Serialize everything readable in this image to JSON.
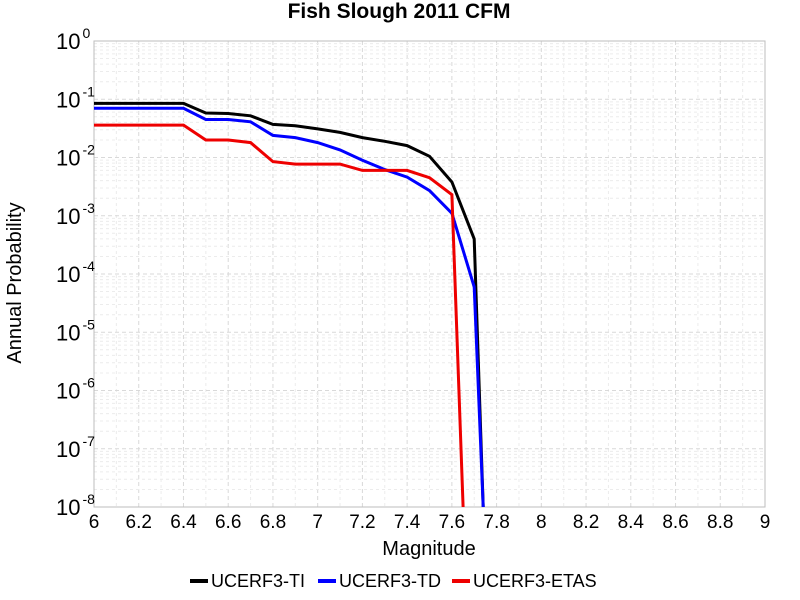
{
  "chart_data": {
    "type": "line",
    "title": "Fish Slough 2011 CFM",
    "xlabel": "Magnitude",
    "ylabel": "Annual Probability",
    "xlim": [
      6,
      9
    ],
    "ylim": [
      1e-08,
      1
    ],
    "yscale": "log",
    "grid": true,
    "legend_position": "bottom",
    "x_ticks": [
      "6",
      "6.2",
      "6.4",
      "6.6",
      "6.8",
      "7",
      "7.2",
      "7.4",
      "7.6",
      "7.8",
      "8",
      "8.2",
      "8.4",
      "8.6",
      "8.8",
      "9"
    ],
    "y_ticks": [
      {
        "base": "10",
        "exp": "0"
      },
      {
        "base": "10",
        "exp": "-1"
      },
      {
        "base": "10",
        "exp": "-2"
      },
      {
        "base": "10",
        "exp": "-3"
      },
      {
        "base": "10",
        "exp": "-4"
      },
      {
        "base": "10",
        "exp": "-5"
      },
      {
        "base": "10",
        "exp": "-6"
      },
      {
        "base": "10",
        "exp": "-7"
      },
      {
        "base": "10",
        "exp": "-8"
      }
    ],
    "series": [
      {
        "name": "UCERF3-TI",
        "color": "#000000",
        "x": [
          6.0,
          6.1,
          6.2,
          6.3,
          6.4,
          6.5,
          6.6,
          6.7,
          6.8,
          6.9,
          7.0,
          7.1,
          7.2,
          7.3,
          7.4,
          7.5,
          7.6,
          7.7,
          7.74
        ],
        "y": [
          0.085,
          0.085,
          0.085,
          0.085,
          0.085,
          0.058,
          0.057,
          0.052,
          0.037,
          0.035,
          0.031,
          0.027,
          0.022,
          0.019,
          0.016,
          0.0105,
          0.0038,
          0.0004,
          1e-08
        ]
      },
      {
        "name": "UCERF3-TD",
        "color": "#0000ff",
        "x": [
          6.0,
          6.1,
          6.2,
          6.3,
          6.4,
          6.5,
          6.6,
          6.7,
          6.8,
          6.9,
          7.0,
          7.1,
          7.2,
          7.3,
          7.4,
          7.5,
          7.6,
          7.7,
          7.74
        ],
        "y": [
          0.07,
          0.07,
          0.07,
          0.07,
          0.07,
          0.045,
          0.045,
          0.041,
          0.024,
          0.022,
          0.018,
          0.0135,
          0.009,
          0.0062,
          0.0046,
          0.0027,
          0.0011,
          6e-05,
          1e-08
        ]
      },
      {
        "name": "UCERF3-ETAS",
        "color": "#ee0000",
        "x": [
          6.0,
          6.1,
          6.2,
          6.3,
          6.4,
          6.5,
          6.6,
          6.7,
          6.8,
          6.9,
          7.0,
          7.1,
          7.2,
          7.3,
          7.4,
          7.5,
          7.6,
          7.65
        ],
        "y": [
          0.036,
          0.036,
          0.036,
          0.036,
          0.036,
          0.02,
          0.02,
          0.018,
          0.0085,
          0.0077,
          0.0077,
          0.0077,
          0.006,
          0.006,
          0.006,
          0.0045,
          0.0023,
          1e-08
        ]
      }
    ]
  }
}
